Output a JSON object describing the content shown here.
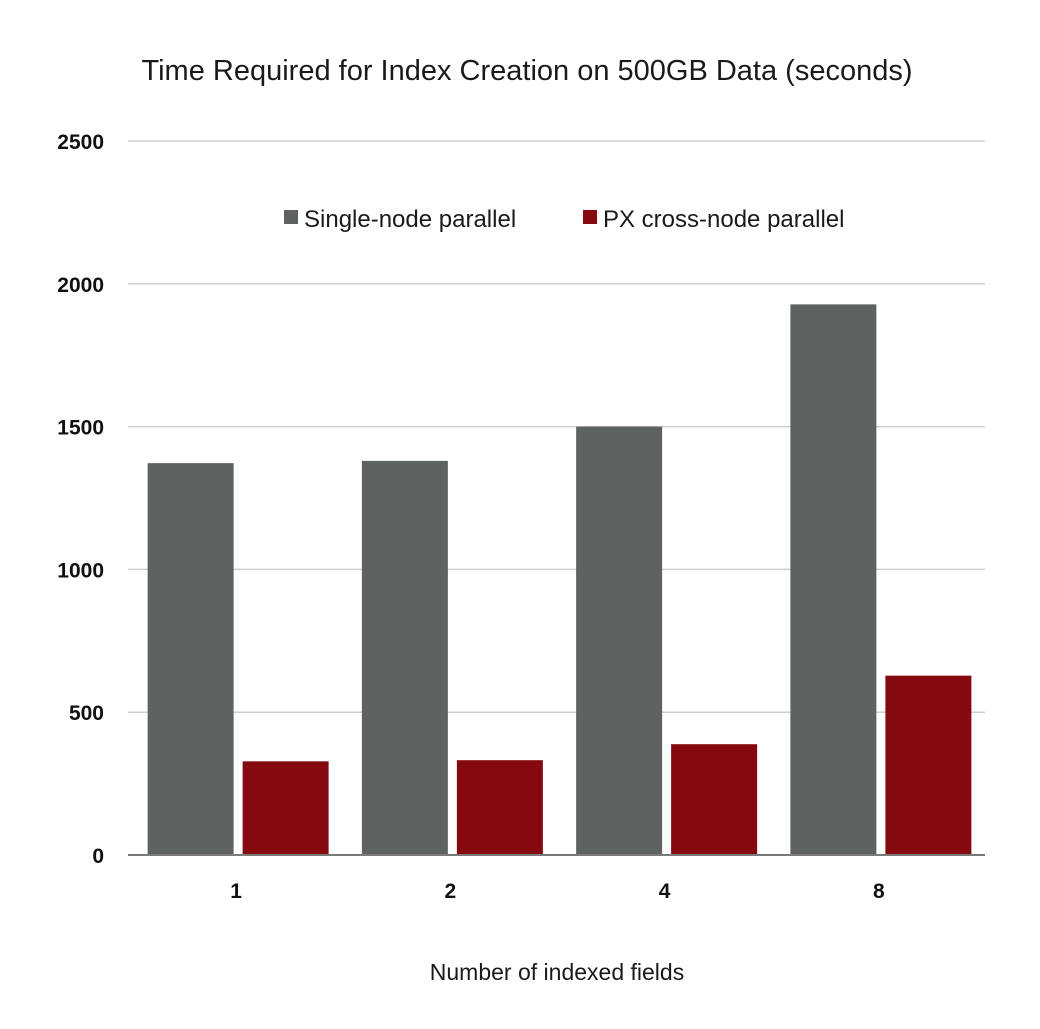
{
  "chart_data": {
    "type": "bar",
    "title": "Time Required for Index Creation on 500GB Data (seconds)",
    "xlabel": "Number of indexed fields",
    "ylabel": "",
    "categories": [
      "1",
      "2",
      "4",
      "8"
    ],
    "series": [
      {
        "name": "Single-node parallel",
        "color": "#5e6361",
        "values": [
          1372,
          1380,
          1500,
          1928
        ]
      },
      {
        "name": "PX cross-node parallel",
        "color": "#850a10",
        "values": [
          328,
          332,
          388,
          628
        ]
      }
    ],
    "ylim": [
      0,
      2500
    ],
    "yticks": [
      0,
      500,
      1000,
      1500,
      2000,
      2500
    ],
    "grid": true,
    "legend_position": "top-center"
  }
}
